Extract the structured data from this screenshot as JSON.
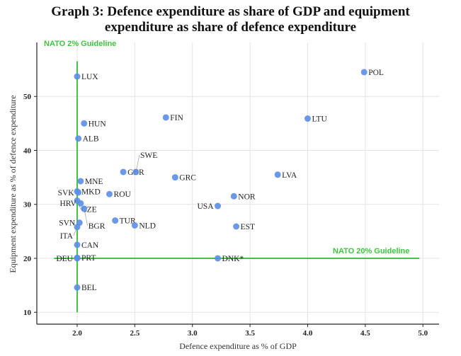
{
  "chart_data": {
    "type": "scatter",
    "title_line1": "Graph 3: Defence expenditure as share of GDP and equipment",
    "title_line2": "expenditure as share of defence expenditure",
    "xlabel": "Defence expenditure as % of GDP",
    "ylabel": "Equipment expenditure as % of defence expenditure",
    "xlim": [
      1.65,
      5.14
    ],
    "ylim": [
      7.8,
      60
    ],
    "xticks": [
      2.0,
      2.5,
      3.0,
      3.5,
      4.0,
      4.5,
      5.0
    ],
    "xtick_labels": [
      "2.0",
      "2.5",
      "3.0",
      "3.5",
      "4.0",
      "4.5",
      "5.0"
    ],
    "yticks": [
      10,
      20,
      30,
      40,
      50
    ],
    "ytick_labels": [
      "10",
      "20",
      "30",
      "40",
      "50"
    ],
    "grid": true,
    "point_color": "#5b8ee6",
    "guide_color": "#3ec43e",
    "guidelines": {
      "vertical": {
        "label": "NATO 2% Guideline",
        "x": 2.0,
        "y_range": [
          10,
          56.5
        ]
      },
      "horizontal": {
        "label": "NATO 20% Guideline",
        "y": 20,
        "x_range": [
          1.8,
          4.97
        ]
      }
    },
    "points": [
      {
        "label": "POL",
        "x": 4.49,
        "y": 54.5
      },
      {
        "label": "LUX",
        "x": 2.0,
        "y": 53.7
      },
      {
        "label": "FIN",
        "x": 2.77,
        "y": 46.1
      },
      {
        "label": "LTU",
        "x": 4.0,
        "y": 45.9
      },
      {
        "label": "HUN",
        "x": 2.06,
        "y": 45.0
      },
      {
        "label": "ALB",
        "x": 2.01,
        "y": 42.2
      },
      {
        "label": "GBR",
        "x": 2.4,
        "y": 36.0
      },
      {
        "label": "SWE",
        "x": 2.51,
        "y": 36.0
      },
      {
        "label": "LVA",
        "x": 3.74,
        "y": 35.5
      },
      {
        "label": "GRC",
        "x": 2.85,
        "y": 35.0
      },
      {
        "label": "MNE",
        "x": 2.03,
        "y": 34.3
      },
      {
        "label": "MKD",
        "x": 2.0,
        "y": 32.4
      },
      {
        "label": "SVK",
        "x": 2.01,
        "y": 32.2
      },
      {
        "label": "ROU",
        "x": 2.28,
        "y": 31.9
      },
      {
        "label": "NOR",
        "x": 3.36,
        "y": 31.5
      },
      {
        "label": "CZE",
        "x": 2.0,
        "y": 30.7
      },
      {
        "label": "HRV",
        "x": 2.03,
        "y": 30.2
      },
      {
        "label": "USA",
        "x": 3.22,
        "y": 29.7
      },
      {
        "label": "BGR",
        "x": 2.06,
        "y": 29.2
      },
      {
        "label": "TUR",
        "x": 2.33,
        "y": 27.0
      },
      {
        "label": "SVN",
        "x": 2.02,
        "y": 26.6
      },
      {
        "label": "NLD",
        "x": 2.5,
        "y": 26.1
      },
      {
        "label": "EST",
        "x": 3.38,
        "y": 25.9
      },
      {
        "label": "ITA",
        "x": 2.0,
        "y": 25.8
      },
      {
        "label": "CAN",
        "x": 2.0,
        "y": 22.5
      },
      {
        "label": "PRT",
        "x": 2.0,
        "y": 20.1
      },
      {
        "label": "DEU",
        "x": 2.0,
        "y": 20.0
      },
      {
        "label": "DNK*",
        "x": 3.22,
        "y": 20.0
      },
      {
        "label": "BEL",
        "x": 2.0,
        "y": 14.6
      }
    ]
  }
}
